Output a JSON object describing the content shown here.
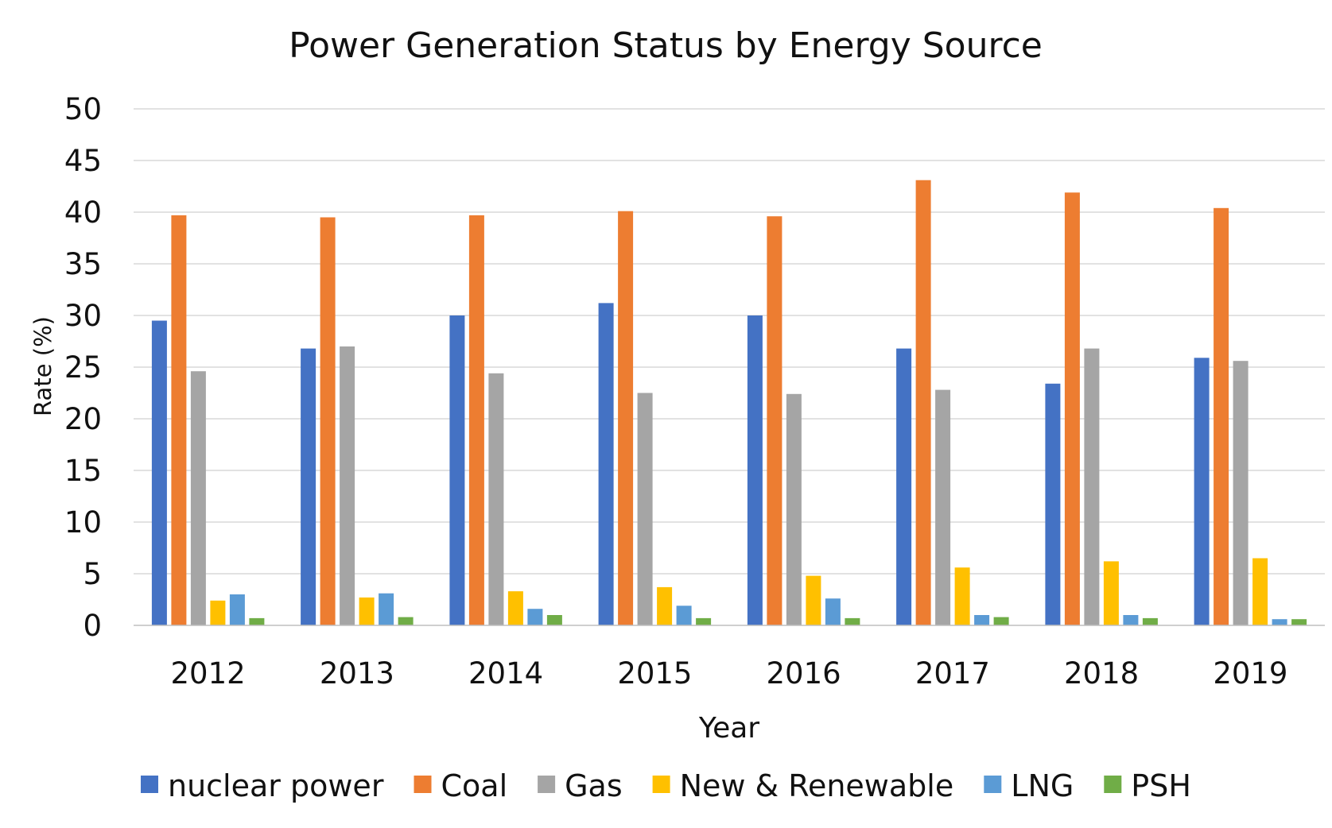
{
  "chart_data": {
    "type": "bar",
    "title": "Power Generation Status by Energy Source",
    "xlabel": "Year",
    "ylabel": "Rate (%)",
    "ylim": [
      0,
      50
    ],
    "yticks": [
      "0",
      "5",
      "10",
      "15",
      "20",
      "25",
      "30",
      "35",
      "40",
      "45",
      "50"
    ],
    "grid": true,
    "legend_position": "bottom",
    "categories": [
      "2012",
      "2013",
      "2014",
      "2015",
      "2016",
      "2017",
      "2018",
      "2019"
    ],
    "series": [
      {
        "name": "nuclear power",
        "color": "#4472C4",
        "values": [
          29.5,
          26.8,
          30.0,
          31.2,
          30.0,
          26.8,
          23.4,
          25.9
        ]
      },
      {
        "name": "Coal",
        "color": "#ED7D31",
        "values": [
          39.7,
          39.5,
          39.7,
          40.1,
          39.6,
          43.1,
          41.9,
          40.4
        ]
      },
      {
        "name": "Gas",
        "color": "#A5A5A5",
        "values": [
          24.6,
          27.0,
          24.4,
          22.5,
          22.4,
          22.8,
          26.8,
          25.6
        ]
      },
      {
        "name": "New & Renewable",
        "color": "#FFC000",
        "values": [
          2.4,
          2.7,
          3.3,
          3.7,
          4.8,
          5.6,
          6.2,
          6.5
        ]
      },
      {
        "name": "LNG",
        "color": "#5B9BD5",
        "values": [
          3.0,
          3.1,
          1.6,
          1.9,
          2.6,
          1.0,
          1.0,
          0.6
        ]
      },
      {
        "name": "PSH",
        "color": "#70AD47",
        "values": [
          0.7,
          0.8,
          1.0,
          0.7,
          0.7,
          0.8,
          0.7,
          0.6
        ]
      }
    ]
  }
}
